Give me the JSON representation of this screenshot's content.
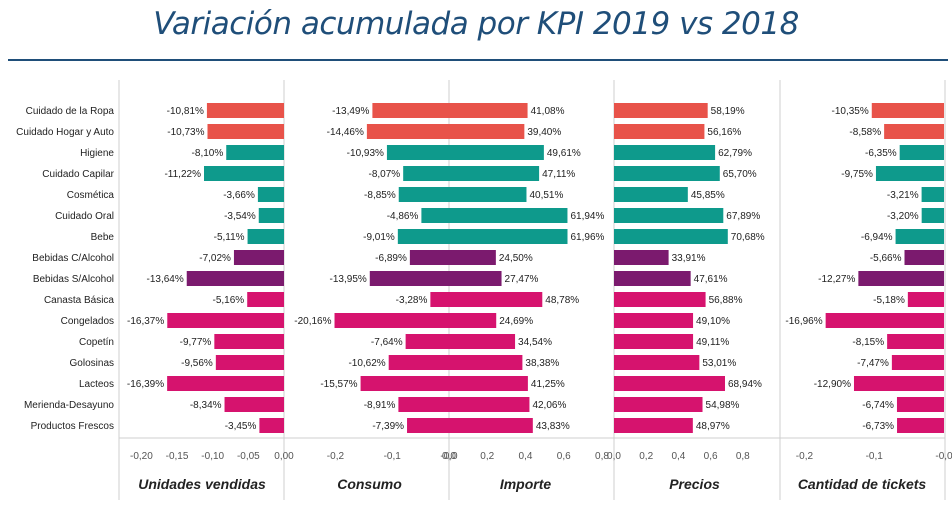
{
  "title": "Variación acumulada por KPI 2019 vs 2018",
  "colors": {
    "red": "#e8534a",
    "teal": "#0e9a8c",
    "purple": "#7b1a6e",
    "magenta": "#d6136e",
    "axis": "#cfcfcf",
    "text": "#222222",
    "title": "#1f4e79"
  },
  "chart_data": {
    "type": "bar",
    "orientation": "horizontal",
    "categories": [
      "Cuidado de la Ropa",
      "Cuidado Hogar y Auto",
      "Higiene",
      "Cuidado Capilar",
      "Cosmética",
      "Cuidado Oral",
      "Bebe",
      "Bebidas C/Alcohol",
      "Bebidas S/Alcohol",
      "Canasta Básica",
      "Congelados",
      "Copetín",
      "Golosinas",
      "Lacteos",
      "Merienda-Desayuno",
      "Productos Frescos"
    ],
    "category_colors": [
      "red",
      "red",
      "teal",
      "teal",
      "teal",
      "teal",
      "teal",
      "purple",
      "purple",
      "magenta",
      "magenta",
      "magenta",
      "magenta",
      "magenta",
      "magenta",
      "magenta"
    ],
    "grid": false,
    "panels": [
      {
        "name": "Unidades vendidas",
        "values": [
          -0.1081,
          -0.1073,
          -0.081,
          -0.1122,
          -0.0366,
          -0.0354,
          -0.0511,
          -0.0702,
          -0.1364,
          -0.0516,
          -0.1637,
          -0.0977,
          -0.0956,
          -0.1639,
          -0.0834,
          -0.0345
        ],
        "labels": [
          "-10,81%",
          "-10,73%",
          "-8,10%",
          "-11,22%",
          "-3,66%",
          "-3,54%",
          "-5,11%",
          "-7,02%",
          "-13,64%",
          "-5,16%",
          "-16,37%",
          "-9,77%",
          "-9,56%",
          "-16,39%",
          "-8,34%",
          "-3,45%"
        ],
        "xlim": [
          -0.23,
          0.0
        ],
        "ticks": [
          -0.2,
          -0.15,
          -0.1,
          -0.05,
          0.0
        ],
        "tick_labels": [
          "-0,20",
          "-0,15",
          "-0,10",
          "-0,05",
          "0,00"
        ]
      },
      {
        "name": "Consumo",
        "values": [
          -0.1349,
          -0.1446,
          -0.1093,
          -0.0807,
          -0.0885,
          -0.0486,
          -0.0901,
          -0.0689,
          -0.1395,
          -0.0328,
          -0.2016,
          -0.0764,
          -0.1062,
          -0.1557,
          -0.0891,
          -0.0739
        ],
        "labels": [
          "-13,49%",
          "-14,46%",
          "-10,93%",
          "-8,07%",
          "-8,85%",
          "-4,86%",
          "-9,01%",
          "-6,89%",
          "-13,95%",
          "-3,28%",
          "-20,16%",
          "-7,64%",
          "-10,62%",
          "-15,57%",
          "-8,91%",
          "-7,39%"
        ],
        "xlim": [
          -0.28,
          0.0
        ],
        "ticks": [
          -0.2,
          -0.1,
          0.0
        ],
        "tick_labels": [
          "-0,2",
          "-0,1",
          "-0,0"
        ]
      },
      {
        "name": "Importe",
        "values": [
          0.4108,
          0.394,
          0.4961,
          0.4711,
          0.4051,
          0.6194,
          0.6196,
          0.245,
          0.2747,
          0.4878,
          0.2469,
          0.3454,
          0.3838,
          0.4125,
          0.4206,
          0.4383
        ],
        "labels": [
          "41,08%",
          "39,40%",
          "49,61%",
          "47,11%",
          "40,51%",
          "61,94%",
          "61,96%",
          "24,50%",
          "27,47%",
          "48,78%",
          "24,69%",
          "34,54%",
          "38,38%",
          "41,25%",
          "42,06%",
          "43,83%"
        ],
        "xlim": [
          0.0,
          0.8
        ],
        "ticks": [
          0.0,
          0.2,
          0.4,
          0.6,
          0.8
        ],
        "tick_labels": [
          "0,0",
          "0,2",
          "0,4",
          "0,6",
          "0,8"
        ]
      },
      {
        "name": "Precios",
        "values": [
          0.5819,
          0.5616,
          0.6279,
          0.657,
          0.4585,
          0.6789,
          0.7068,
          0.3391,
          0.4761,
          0.5688,
          0.491,
          0.4911,
          0.5301,
          0.6894,
          0.5498,
          0.4897
        ],
        "labels": [
          "58,19%",
          "56,16%",
          "62,79%",
          "65,70%",
          "45,85%",
          "67,89%",
          "70,68%",
          "33,91%",
          "47,61%",
          "56,88%",
          "49,10%",
          "49,11%",
          "53,01%",
          "68,94%",
          "54,98%",
          "48,97%"
        ],
        "xlim": [
          0.0,
          1.0
        ],
        "ticks": [
          0.0,
          0.2,
          0.4,
          0.6,
          0.8
        ],
        "tick_labels": [
          "0,0",
          "0,2",
          "0,4",
          "0,6",
          "0,8"
        ]
      },
      {
        "name": "Cantidad de tickets",
        "values": [
          -0.1035,
          -0.0858,
          -0.0635,
          -0.0975,
          -0.0321,
          -0.032,
          -0.0694,
          -0.0566,
          -0.1227,
          -0.0518,
          -0.1696,
          -0.0815,
          -0.0747,
          -0.129,
          -0.0674,
          -0.0673
        ],
        "labels": [
          "-10,35%",
          "-8,58%",
          "-6,35%",
          "-9,75%",
          "-3,21%",
          "-3,20%",
          "-6,94%",
          "-5,66%",
          "-12,27%",
          "-5,18%",
          "-16,96%",
          "-8,15%",
          "-7,47%",
          "-12,90%",
          "-6,74%",
          "-6,73%"
        ],
        "xlim": [
          -0.235,
          0.0
        ],
        "ticks": [
          -0.2,
          -0.1,
          0.0
        ],
        "tick_labels": [
          "-0,2",
          "-0,1",
          "-0,0"
        ]
      }
    ]
  }
}
